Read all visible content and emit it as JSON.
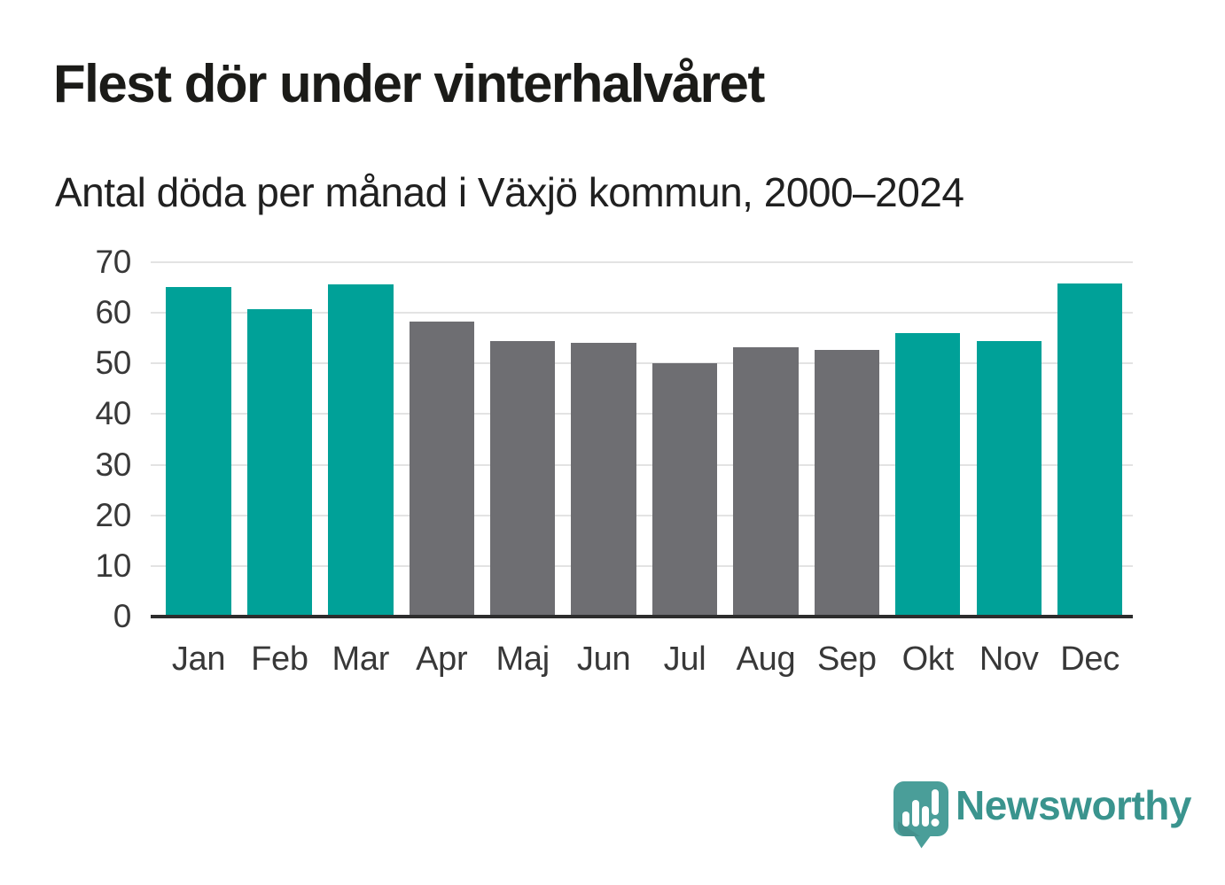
{
  "header": {
    "title": "Flest dör under vinterhalvåret",
    "subtitle": "Antal döda per månad i Växjö kommun, 2000–2024"
  },
  "chart_data": {
    "type": "bar",
    "title": "Flest dör under vinterhalvåret",
    "subtitle": "Antal döda per månad i Växjö kommun, 2000–2024",
    "categories": [
      "Jan",
      "Feb",
      "Mar",
      "Apr",
      "Maj",
      "Jun",
      "Jul",
      "Aug",
      "Sep",
      "Okt",
      "Nov",
      "Dec"
    ],
    "values": [
      64.8,
      60.4,
      65.2,
      57.9,
      54.1,
      53.7,
      49.7,
      52.9,
      52.3,
      55.6,
      54.0,
      65.4
    ],
    "bar_colors": [
      "#00a198",
      "#00a198",
      "#00a198",
      "#6e6e72",
      "#6e6e72",
      "#6e6e72",
      "#6e6e72",
      "#6e6e72",
      "#6e6e72",
      "#00a198",
      "#00a198",
      "#00a198"
    ],
    "color_legend": {
      "winter_highlight": "#00a198",
      "summer_default": "#6e6e72"
    },
    "xlabel": "",
    "ylabel": "",
    "ylim": [
      0,
      70
    ],
    "yticks": [
      0,
      10,
      20,
      30,
      40,
      50,
      60,
      70
    ],
    "grid": "horizontal",
    "legend": "none"
  },
  "branding": {
    "name": "Newsworthy",
    "logo_icon": "newsworthy-speech-bubble-bar-chart-icon",
    "text_color": "#3a948e",
    "icon_color": "#4a9e99"
  }
}
